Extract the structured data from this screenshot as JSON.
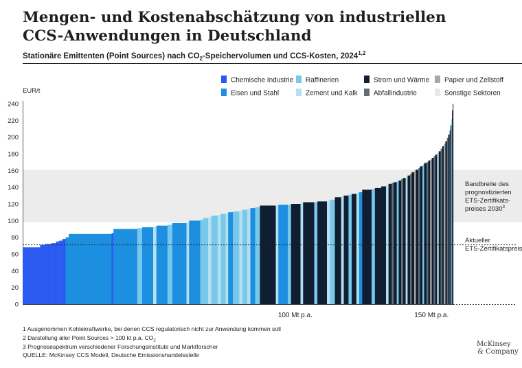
{
  "title": "Mengen- und Kostenabschätzung von industriellen CCS-Anwendungen in Deutschland",
  "subtitle": {
    "pre": "Stationäre Emittenten (Point Sources) nach CO",
    "sub": "2",
    "post": "-Speichervolumen und CCS-Kosten, 2024",
    "sup": "1,2"
  },
  "footnotes": {
    "f1": "1 Ausgenommen Kohlekraftwerke, bei denen CCS regulatorisch nicht zur Anwendung kommen soll",
    "f2_pre": "2 Darstellung aller Point Sources > 100  kt p.a. CO",
    "f2_sub": "2",
    "f3": "3 Prognosespektrum verschiedener Forschungsinstitute und Marktforscher",
    "source": "QUELLE: McKinsey CCS Modell, Deutsche Emissionshandelsstelle"
  },
  "logo": {
    "line1": "McKinsey",
    "line2": "& Company"
  },
  "colors": {
    "chemie": "#2a5af0",
    "eisen": "#1d8fe0",
    "raff": "#78c8ec",
    "zement": "#b6e0f0",
    "strom": "#0f1e30",
    "papier": "#a8a8a8",
    "abfall": "#666c74",
    "sonstige": "#e8e8e8",
    "band": "#ececec"
  },
  "chart_data": {
    "type": "bar",
    "yunit": "EUR/t",
    "ylim": [
      0,
      240
    ],
    "yticks": [
      0,
      20,
      40,
      60,
      80,
      100,
      120,
      140,
      160,
      180,
      200,
      220,
      240
    ],
    "xlim": [
      0,
      158
    ],
    "xticks": [
      {
        "value": 100,
        "label": "100 Mt p.a."
      },
      {
        "value": 150,
        "label": "150 Mt p.a."
      }
    ],
    "legend": [
      {
        "key": "chemie",
        "label": "Chemische Industrie"
      },
      {
        "key": "raff",
        "label": "Raffinerien"
      },
      {
        "key": "strom",
        "label": "Strom und Wärme"
      },
      {
        "key": "papier",
        "label": "Papier und Zellstoff"
      },
      {
        "key": "eisen",
        "label": "Eisen und Stahl"
      },
      {
        "key": "zement",
        "label": "Zement und Kalk"
      },
      {
        "key": "abfall",
        "label": "Abfallindustrie"
      },
      {
        "key": "sonstige",
        "label": "Sonstige Sektoren"
      }
    ],
    "band": {
      "from": 98,
      "to": 161,
      "label": [
        "Bandbreite des",
        "prognostizierten",
        "ETS-Zertifikats-",
        "preises 2030"
      ],
      "label_sup": "3"
    },
    "current_price": {
      "value": 71,
      "label": [
        "Aktueller",
        "ETS-Zertifikatspreis"
      ]
    },
    "segments": [
      {
        "w": 5.5,
        "v": 68,
        "c": "chemie"
      },
      {
        "w": 1.5,
        "v": 71,
        "c": "chemie"
      },
      {
        "w": 2.0,
        "v": 72,
        "c": "chemie"
      },
      {
        "w": 1.5,
        "v": 73,
        "c": "chemie"
      },
      {
        "w": 1.0,
        "v": 75,
        "c": "chemie"
      },
      {
        "w": 1.0,
        "v": 76,
        "c": "chemie"
      },
      {
        "w": 1.0,
        "v": 78,
        "c": "chemie"
      },
      {
        "w": 1.0,
        "v": 80,
        "c": "eisen"
      },
      {
        "w": 13.5,
        "v": 84,
        "c": "eisen"
      },
      {
        "w": 0.6,
        "v": 85,
        "c": "chemie"
      },
      {
        "w": 7.5,
        "v": 90,
        "c": "eisen"
      },
      {
        "w": 1.5,
        "v": 91,
        "c": "raff"
      },
      {
        "w": 3.5,
        "v": 92,
        "c": "eisen"
      },
      {
        "w": 1.0,
        "v": 93,
        "c": "zement"
      },
      {
        "w": 3.5,
        "v": 94,
        "c": "eisen"
      },
      {
        "w": 1.5,
        "v": 95,
        "c": "raff"
      },
      {
        "w": 4.5,
        "v": 97,
        "c": "eisen"
      },
      {
        "w": 0.8,
        "v": 98,
        "c": "zement"
      },
      {
        "w": 3.5,
        "v": 100,
        "c": "eisen"
      },
      {
        "w": 1.0,
        "v": 101,
        "c": "raff"
      },
      {
        "w": 1.5,
        "v": 103,
        "c": "raff"
      },
      {
        "w": 1.0,
        "v": 104,
        "c": "zement"
      },
      {
        "w": 2.0,
        "v": 106,
        "c": "raff"
      },
      {
        "w": 1.0,
        "v": 107,
        "c": "zement"
      },
      {
        "w": 1.5,
        "v": 108,
        "c": "raff"
      },
      {
        "w": 0.8,
        "v": 109,
        "c": "zement"
      },
      {
        "w": 1.5,
        "v": 110,
        "c": "eisen"
      },
      {
        "w": 2.0,
        "v": 111,
        "c": "raff"
      },
      {
        "w": 1.0,
        "v": 112,
        "c": "zement"
      },
      {
        "w": 1.5,
        "v": 113,
        "c": "raff"
      },
      {
        "w": 1.0,
        "v": 114,
        "c": "zement"
      },
      {
        "w": 1.5,
        "v": 115,
        "c": "eisen"
      },
      {
        "w": 1.5,
        "v": 116,
        "c": "raff"
      },
      {
        "w": 5.0,
        "v": 118,
        "c": "strom"
      },
      {
        "w": 0.8,
        "v": 118,
        "c": "zement"
      },
      {
        "w": 3.0,
        "v": 119,
        "c": "eisen"
      },
      {
        "w": 1.0,
        "v": 119,
        "c": "raff"
      },
      {
        "w": 3.0,
        "v": 120,
        "c": "strom"
      },
      {
        "w": 0.8,
        "v": 121,
        "c": "zement"
      },
      {
        "w": 3.5,
        "v": 122,
        "c": "strom"
      },
      {
        "w": 1.0,
        "v": 122,
        "c": "raff"
      },
      {
        "w": 3.0,
        "v": 123,
        "c": "strom"
      },
      {
        "w": 1.0,
        "v": 124,
        "c": "zement"
      },
      {
        "w": 1.5,
        "v": 125,
        "c": "raff"
      },
      {
        "w": 2.0,
        "v": 128,
        "c": "strom"
      },
      {
        "w": 0.8,
        "v": 129,
        "c": "zement"
      },
      {
        "w": 1.5,
        "v": 130,
        "c": "strom"
      },
      {
        "w": 1.0,
        "v": 131,
        "c": "raff"
      },
      {
        "w": 1.5,
        "v": 132,
        "c": "strom"
      },
      {
        "w": 0.8,
        "v": 133,
        "c": "zement"
      },
      {
        "w": 1.0,
        "v": 134,
        "c": "eisen"
      },
      {
        "w": 3.0,
        "v": 137,
        "c": "strom"
      },
      {
        "w": 1.0,
        "v": 138,
        "c": "raff"
      },
      {
        "w": 2.0,
        "v": 139,
        "c": "strom"
      },
      {
        "w": 1.5,
        "v": 141,
        "c": "strom"
      },
      {
        "w": 0.8,
        "v": 142,
        "c": "zement"
      },
      {
        "w": 1.0,
        "v": 144,
        "c": "strom"
      },
      {
        "w": 0.6,
        "v": 145,
        "c": "abfall"
      },
      {
        "w": 1.0,
        "v": 146,
        "c": "strom"
      },
      {
        "w": 0.6,
        "v": 147,
        "c": "raff"
      },
      {
        "w": 0.8,
        "v": 148,
        "c": "strom"
      },
      {
        "w": 0.6,
        "v": 150,
        "c": "abfall"
      },
      {
        "w": 0.8,
        "v": 151,
        "c": "strom"
      },
      {
        "w": 0.6,
        "v": 152,
        "c": "zement"
      },
      {
        "w": 0.8,
        "v": 154,
        "c": "strom"
      },
      {
        "w": 0.5,
        "v": 156,
        "c": "abfall"
      },
      {
        "w": 0.8,
        "v": 158,
        "c": "strom"
      },
      {
        "w": 0.5,
        "v": 160,
        "c": "papier"
      },
      {
        "w": 0.8,
        "v": 161,
        "c": "strom"
      },
      {
        "w": 0.5,
        "v": 163,
        "c": "abfall"
      },
      {
        "w": 0.8,
        "v": 165,
        "c": "strom"
      },
      {
        "w": 0.5,
        "v": 167,
        "c": "raff"
      },
      {
        "w": 0.8,
        "v": 169,
        "c": "strom"
      },
      {
        "w": 0.5,
        "v": 170,
        "c": "abfall"
      },
      {
        "w": 0.6,
        "v": 172,
        "c": "strom"
      },
      {
        "w": 0.5,
        "v": 173,
        "c": "papier"
      },
      {
        "w": 0.6,
        "v": 175,
        "c": "strom"
      },
      {
        "w": 0.5,
        "v": 177,
        "c": "abfall"
      },
      {
        "w": 0.6,
        "v": 179,
        "c": "strom"
      },
      {
        "w": 0.5,
        "v": 181,
        "c": "zement"
      },
      {
        "w": 0.6,
        "v": 183,
        "c": "strom"
      },
      {
        "w": 0.5,
        "v": 186,
        "c": "abfall"
      },
      {
        "w": 0.5,
        "v": 189,
        "c": "strom"
      },
      {
        "w": 0.5,
        "v": 192,
        "c": "papier"
      },
      {
        "w": 0.5,
        "v": 195,
        "c": "strom"
      },
      {
        "w": 0.4,
        "v": 199,
        "c": "abfall"
      },
      {
        "w": 0.4,
        "v": 203,
        "c": "strom"
      },
      {
        "w": 0.3,
        "v": 208,
        "c": "abfall"
      },
      {
        "w": 0.3,
        "v": 214,
        "c": "strom"
      },
      {
        "w": 0.2,
        "v": 222,
        "c": "raff"
      },
      {
        "w": 0.2,
        "v": 232,
        "c": "strom"
      },
      {
        "w": 0.2,
        "v": 240,
        "c": "strom"
      }
    ]
  }
}
